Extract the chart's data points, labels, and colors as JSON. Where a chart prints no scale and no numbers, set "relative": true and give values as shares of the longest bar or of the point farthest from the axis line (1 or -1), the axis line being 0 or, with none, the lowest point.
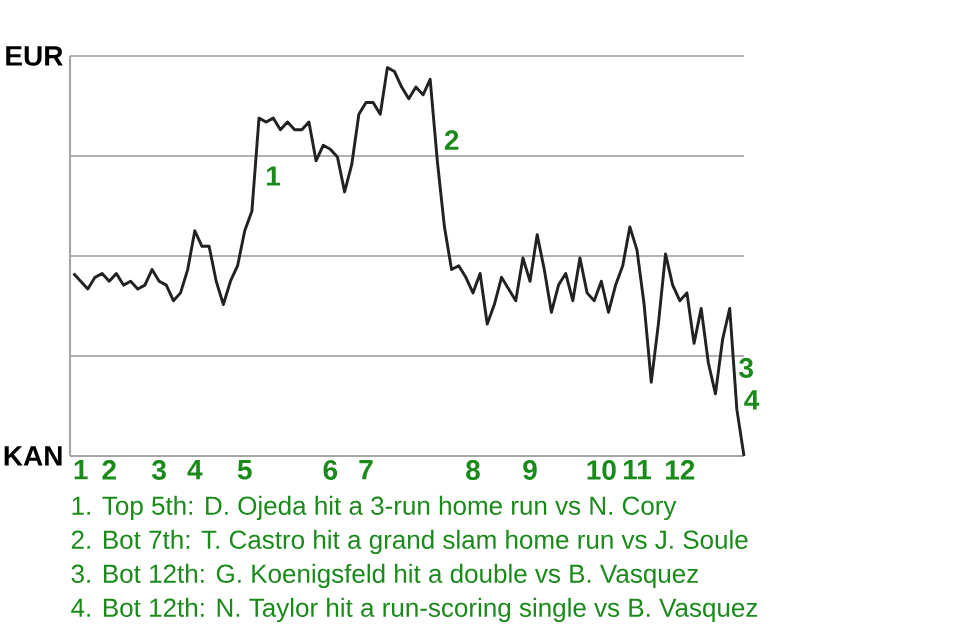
{
  "chart_data": {
    "type": "line",
    "relative": true,
    "categories": [
      null,
      "1",
      null,
      null,
      null,
      "2",
      null,
      null,
      null,
      null,
      null,
      null,
      "3",
      null,
      null,
      null,
      null,
      "4",
      null,
      null,
      null,
      null,
      null,
      null,
      "5",
      null,
      null,
      null,
      null,
      null,
      null,
      null,
      null,
      null,
      null,
      null,
      "6",
      null,
      null,
      null,
      null,
      "7",
      null,
      null,
      null,
      null,
      null,
      null,
      null,
      null,
      null,
      null,
      null,
      null,
      null,
      null,
      "8",
      null,
      null,
      null,
      null,
      null,
      null,
      null,
      "9",
      null,
      null,
      null,
      null,
      null,
      null,
      null,
      null,
      null,
      "10",
      null,
      null,
      null,
      null,
      "11",
      null,
      null,
      null,
      null,
      null,
      "12",
      null,
      null,
      null,
      null,
      null,
      null,
      null,
      null,
      null
    ],
    "series": [
      {
        "color": "#222222",
        "values": [
          0.47,
          0.45,
          0.43,
          0.46,
          0.47,
          0.45,
          0.47,
          0.44,
          0.45,
          0.43,
          0.44,
          0.48,
          0.45,
          0.44,
          0.4,
          0.42,
          0.48,
          0.58,
          0.54,
          0.54,
          0.45,
          0.39,
          0.45,
          0.49,
          0.58,
          0.63,
          0.87,
          0.86,
          0.87,
          0.84,
          0.86,
          0.84,
          0.84,
          0.86,
          0.76,
          0.8,
          0.79,
          0.77,
          0.68,
          0.75,
          0.88,
          0.91,
          0.91,
          0.88,
          1,
          0.99,
          0.95,
          0.92,
          0.95,
          0.93,
          0.97,
          0.76,
          0.59,
          0.48,
          0.49,
          0.46,
          0.42,
          0.47,
          0.34,
          0.39,
          0.46,
          0.43,
          0.4,
          0.51,
          0.45,
          0.57,
          0.48,
          0.37,
          0.44,
          0.47,
          0.4,
          0.51,
          0.42,
          0.4,
          0.45,
          0.37,
          0.44,
          0.49,
          0.59,
          0.53,
          0.39,
          0.19,
          0.34,
          0.52,
          0.44,
          0.4,
          0.42,
          0.29,
          0.38,
          0.24,
          0.16,
          0.3,
          0.38,
          0.12,
          0
        ],
        "line_style": "solid"
      }
    ],
    "grid": "y",
    "annotations": [
      "EUR",
      "KAN",
      "1",
      "2",
      "3",
      "4",
      "1. Top 5th: D. Ojeda hit a 3-run home run vs N. Cory",
      "2. Bot 7th: T. Castro hit a grand slam home run vs J. Soule",
      "3. Bot 12th: G. Koenigsfeld hit a double vs B. Vasquez",
      "4. Bot 12th: N. Taylor hit a run-scoring single vs B. Vasquez"
    ]
  }
}
